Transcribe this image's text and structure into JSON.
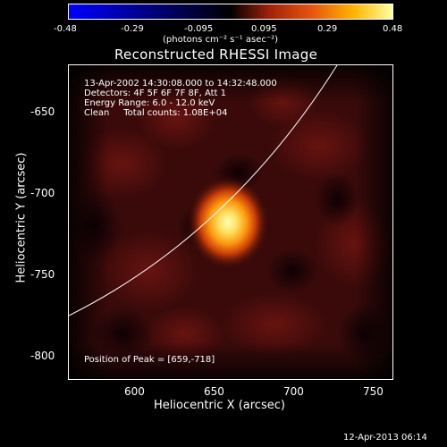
{
  "colorbar": {
    "ticks": [
      "-0.48",
      "-0.29",
      "-0.095",
      "0.095",
      "0.29",
      "0.48"
    ],
    "units": "(photons cm⁻² s⁻¹ asec⁻²)"
  },
  "title": "Reconstructed RHESSI Image",
  "info": {
    "time": "13-Apr-2002 14:30:08.000 to 14:32:48.000",
    "detectors": "Detectors: 4F 5F 6F 7F 8F, Att 1",
    "energy": "Energy Range: 6.0 - 12.0 keV",
    "clean": "Clean     Total counts: 1.08E+04",
    "peak": "Position of Peak = [659,-718]"
  },
  "axes": {
    "xlabel": "Heliocentric X (arcsec)",
    "ylabel": "Heliocentric Y (arcsec)",
    "xticks": [
      "600",
      "650",
      "700",
      "750"
    ],
    "yticks": [
      "-650",
      "-700",
      "-750",
      "-800"
    ]
  },
  "timestamp": "12-Apr-2013 06:14",
  "colors": {
    "source_core": "#ffffa0",
    "source_mid": "#ffb400",
    "background": "#3a0808"
  }
}
